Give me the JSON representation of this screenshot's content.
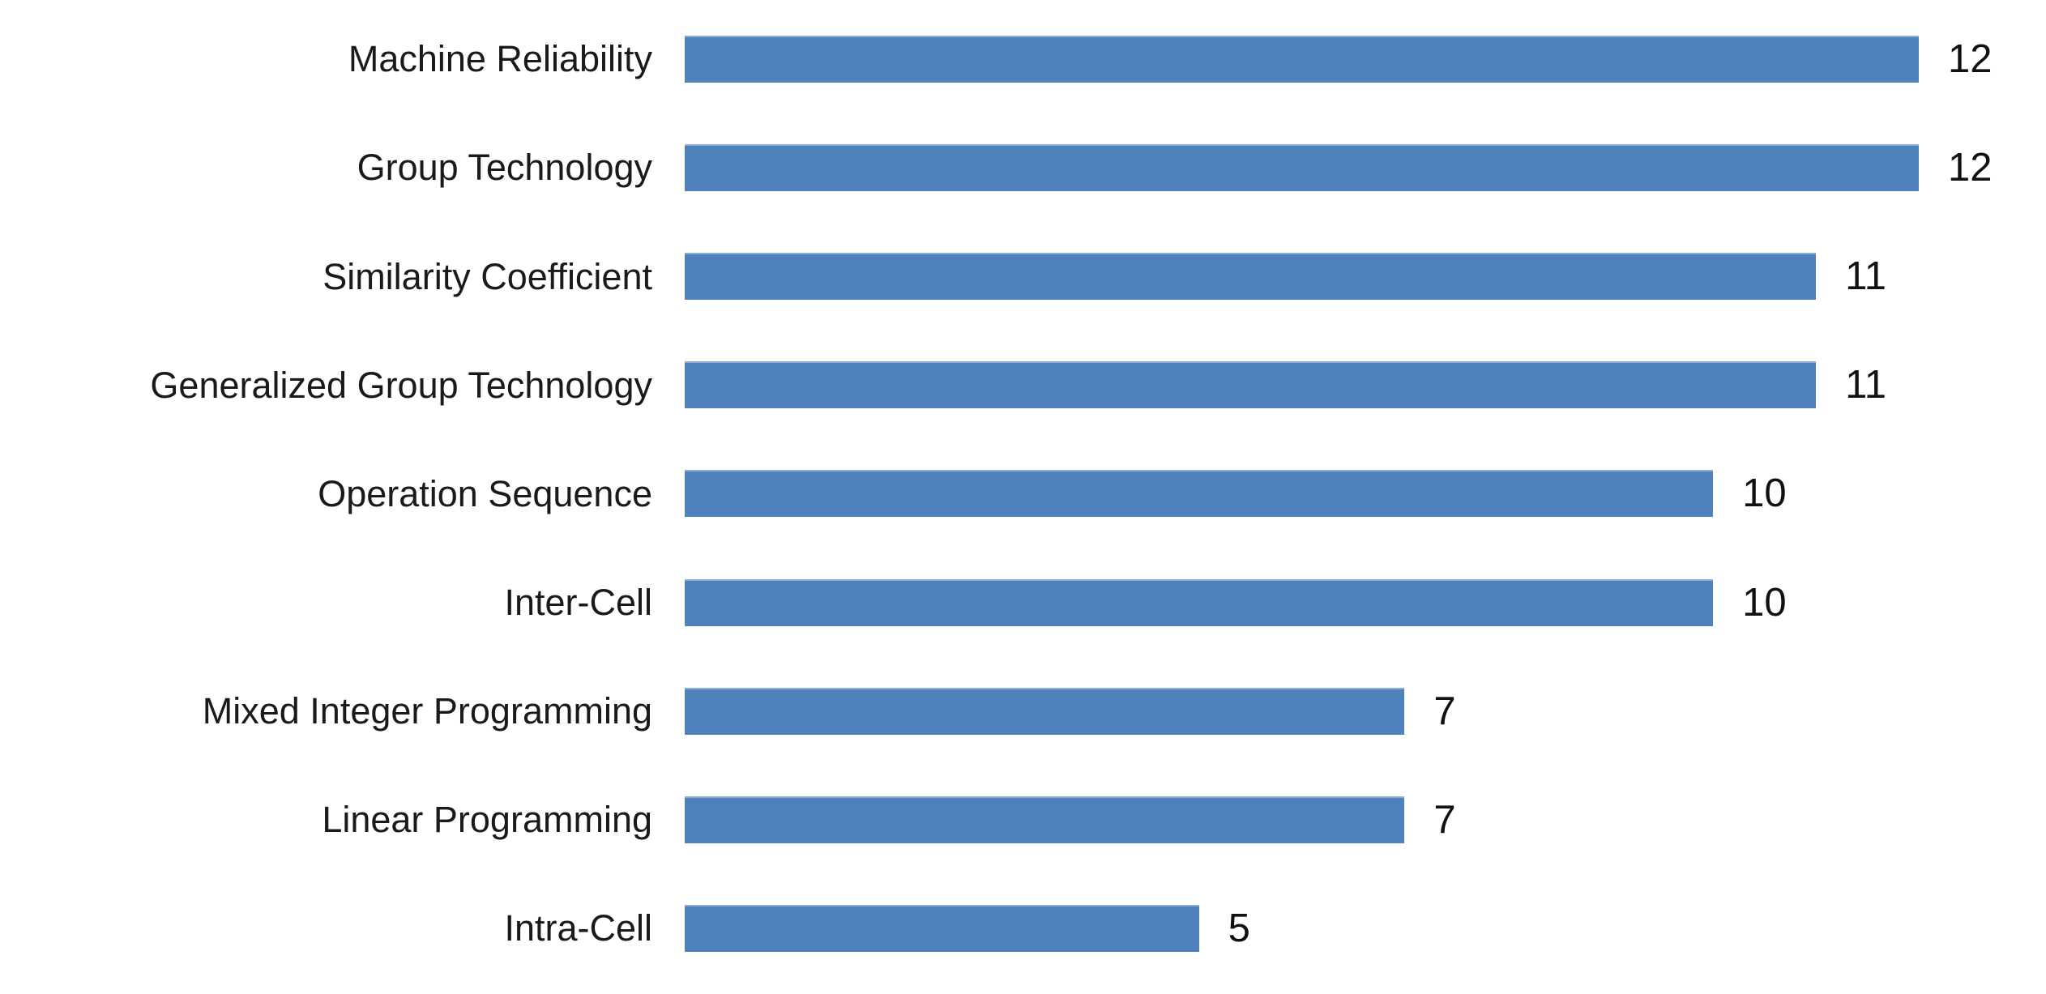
{
  "chart_data": {
    "type": "bar",
    "orientation": "horizontal",
    "title": "",
    "xlabel": "",
    "ylabel": "",
    "categories": [
      "Machine Reliability",
      "Group Technology",
      "Similarity Coefficient",
      "Generalized Group Technology",
      "Operation Sequence",
      "Inter-Cell",
      "Mixed Integer Programming",
      "Linear Programming",
      "Intra-Cell"
    ],
    "values": [
      12,
      12,
      11,
      11,
      10,
      10,
      7,
      7,
      5
    ],
    "xlim": [
      0,
      12
    ],
    "grid": false,
    "axes_visible": false,
    "legend": "none",
    "data_labels": "outside-end",
    "bar_color": "#4F81BD",
    "label_color": "#1a1a1a",
    "background_color": "#ffffff"
  }
}
